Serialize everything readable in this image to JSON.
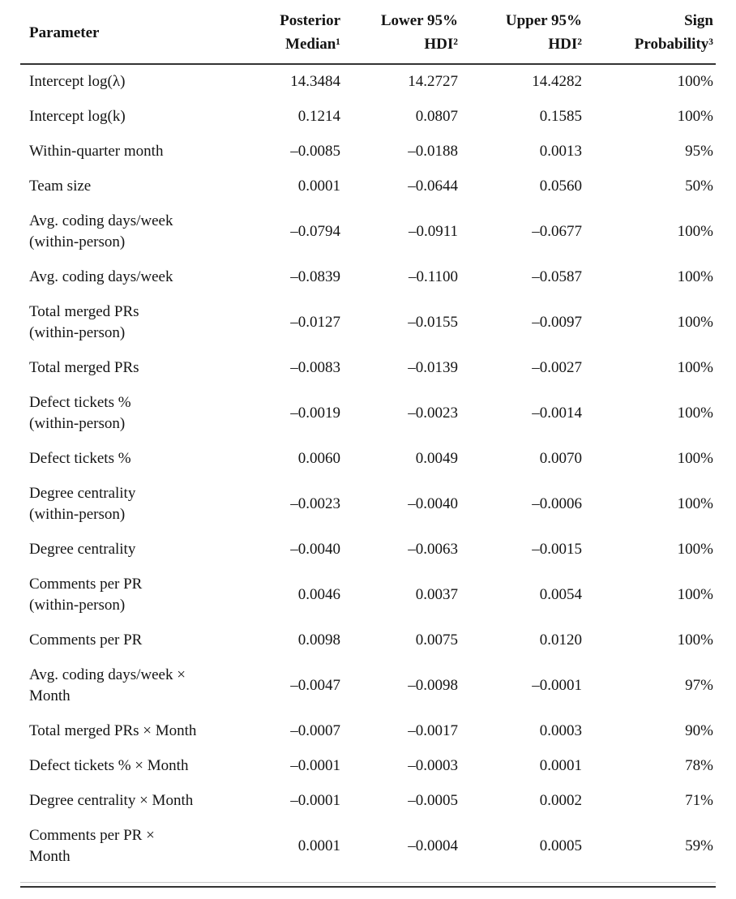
{
  "colors": {
    "background": "#ffffff",
    "text": "#141414",
    "rule_dark": "#333333",
    "rule_light": "#c8c8c8"
  },
  "table": {
    "columns": [
      {
        "key": "parameter",
        "label": "Parameter"
      },
      {
        "key": "median",
        "label": "Posterior\nMedian¹"
      },
      {
        "key": "lower",
        "label": "Lower 95%\nHDI²"
      },
      {
        "key": "upper",
        "label": "Upper 95%\nHDI²"
      },
      {
        "key": "sign",
        "label": "Sign\nProbability³"
      }
    ],
    "rows": [
      {
        "parameter": "Intercept log(λ)",
        "median": "14.3484",
        "lower": "14.2727",
        "upper": "14.4282",
        "sign": "100%"
      },
      {
        "parameter": "Intercept log(k)",
        "median": "0.1214",
        "lower": "0.0807",
        "upper": "0.1585",
        "sign": "100%"
      },
      {
        "parameter": "Within-quarter month",
        "median": "–0.0085",
        "lower": "–0.0188",
        "upper": "0.0013",
        "sign": "95%"
      },
      {
        "parameter": "Team size",
        "median": "0.0001",
        "lower": "–0.0644",
        "upper": "0.0560",
        "sign": "50%"
      },
      {
        "parameter": "Avg. coding days/week\n(within-person)",
        "median": "–0.0794",
        "lower": "–0.0911",
        "upper": "–0.0677",
        "sign": "100%"
      },
      {
        "parameter": "Avg. coding days/week",
        "median": "–0.0839",
        "lower": "–0.1100",
        "upper": "–0.0587",
        "sign": "100%"
      },
      {
        "parameter": "Total merged PRs\n(within-person)",
        "median": "–0.0127",
        "lower": "–0.0155",
        "upper": "–0.0097",
        "sign": "100%"
      },
      {
        "parameter": "Total merged PRs",
        "median": "–0.0083",
        "lower": "–0.0139",
        "upper": "–0.0027",
        "sign": "100%"
      },
      {
        "parameter": "Defect tickets %\n(within-person)",
        "median": "–0.0019",
        "lower": "–0.0023",
        "upper": "–0.0014",
        "sign": "100%"
      },
      {
        "parameter": "Defect tickets %",
        "median": "0.0060",
        "lower": "0.0049",
        "upper": "0.0070",
        "sign": "100%"
      },
      {
        "parameter": "Degree centrality\n(within-person)",
        "median": "–0.0023",
        "lower": "–0.0040",
        "upper": "–0.0006",
        "sign": "100%"
      },
      {
        "parameter": "Degree centrality",
        "median": "–0.0040",
        "lower": "–0.0063",
        "upper": "–0.0015",
        "sign": "100%"
      },
      {
        "parameter": "Comments per PR\n(within-person)",
        "median": "0.0046",
        "lower": "0.0037",
        "upper": "0.0054",
        "sign": "100%"
      },
      {
        "parameter": "Comments per PR",
        "median": "0.0098",
        "lower": "0.0075",
        "upper": "0.0120",
        "sign": "100%"
      },
      {
        "parameter": "Avg. coding days/week ×\nMonth",
        "median": "–0.0047",
        "lower": "–0.0098",
        "upper": "–0.0001",
        "sign": "97%"
      },
      {
        "parameter": "Total merged PRs × Month",
        "median": "–0.0007",
        "lower": "–0.0017",
        "upper": "0.0003",
        "sign": "90%"
      },
      {
        "parameter": "Defect tickets % × Month",
        "median": "–0.0001",
        "lower": "–0.0003",
        "upper": "0.0001",
        "sign": "78%"
      },
      {
        "parameter": "Degree centrality × Month",
        "median": "–0.0001",
        "lower": "–0.0005",
        "upper": "0.0002",
        "sign": "71%"
      },
      {
        "parameter": "Comments per PR ×\nMonth",
        "median": "0.0001",
        "lower": "–0.0004",
        "upper": "0.0005",
        "sign": "59%"
      }
    ]
  }
}
